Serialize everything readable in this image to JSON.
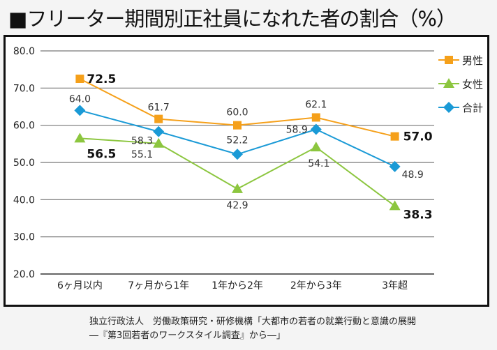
{
  "title": "■フリーター期間別正社員になれた者の割合（%）",
  "source": [
    "独立行政法人　労働政策研究・研修機構「大都市の若者の就業行動と意識の展開",
    "―『第3回若者のワークスタイル調査』から―」"
  ],
  "chart_data": {
    "type": "line",
    "categories": [
      "6ヶ月以内",
      "7ヶ月から1年",
      "1年から2年",
      "2年から3年",
      "3年超"
    ],
    "ylim": [
      20,
      80
    ],
    "yticks": [
      "20.0",
      "30.0",
      "40.0",
      "50.0",
      "60.0",
      "70.0",
      "80.0"
    ],
    "grid": true,
    "legend_position": "right",
    "series": [
      {
        "name": "男性",
        "values": [
          72.5,
          61.7,
          60.0,
          62.1,
          57.0
        ],
        "labels": [
          "72.5",
          "61.7",
          "60.0",
          "62.1",
          "57.0"
        ],
        "color": "#f5a01a",
        "marker": "square"
      },
      {
        "name": "女性",
        "values": [
          56.5,
          55.1,
          42.9,
          54.1,
          38.3
        ],
        "labels": [
          "56.5",
          "55.1",
          "42.9",
          "54.1",
          "38.3"
        ],
        "color": "#8cc63f",
        "marker": "triangle"
      },
      {
        "name": "合計",
        "values": [
          64.0,
          58.3,
          52.2,
          58.9,
          48.9
        ],
        "labels": [
          "64.0",
          "58.3",
          "52.2",
          "58.9",
          "48.9"
        ],
        "color": "#1a9ad6",
        "marker": "diamond"
      }
    ]
  }
}
